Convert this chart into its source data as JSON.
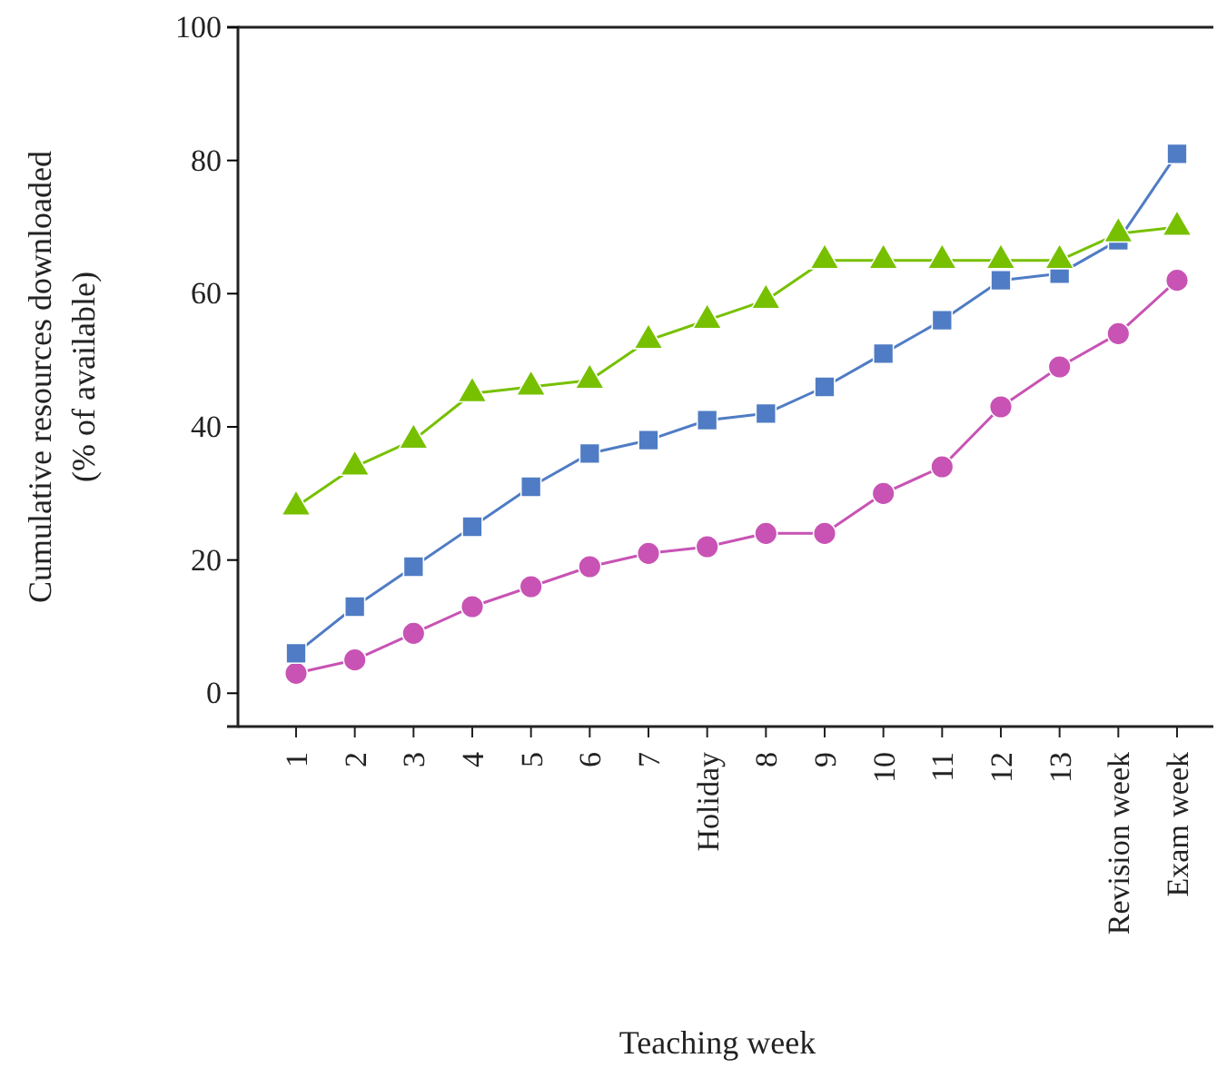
{
  "chart_data": {
    "type": "line",
    "xlabel": "Teaching week",
    "ylabel": "Cumulative resources downloaded\n(% of available)",
    "categories": [
      "1",
      "2",
      "3",
      "4",
      "5",
      "6",
      "7",
      "Holiday",
      "8",
      "9",
      "10",
      "11",
      "12",
      "13",
      "Revision week",
      "Exam week"
    ],
    "ylim": [
      -5,
      100
    ],
    "yticks": [
      0,
      20,
      40,
      60,
      80,
      100
    ],
    "grid": false,
    "legend": false,
    "series": [
      {
        "color": "#77c000",
        "marker": "triangle",
        "values": [
          28,
          34,
          38,
          45,
          46,
          47,
          53,
          56,
          59,
          65,
          65,
          65,
          65,
          65,
          69,
          70
        ]
      },
      {
        "color": "#4f7cc4",
        "marker": "square",
        "values": [
          6,
          13,
          19,
          25,
          31,
          36,
          38,
          41,
          42,
          46,
          51,
          56,
          62,
          63,
          68,
          81
        ]
      },
      {
        "color": "#c853b4",
        "marker": "circle",
        "values": [
          3,
          5,
          9,
          13,
          16,
          19,
          21,
          22,
          24,
          24,
          30,
          34,
          43,
          49,
          54,
          62
        ]
      }
    ]
  }
}
